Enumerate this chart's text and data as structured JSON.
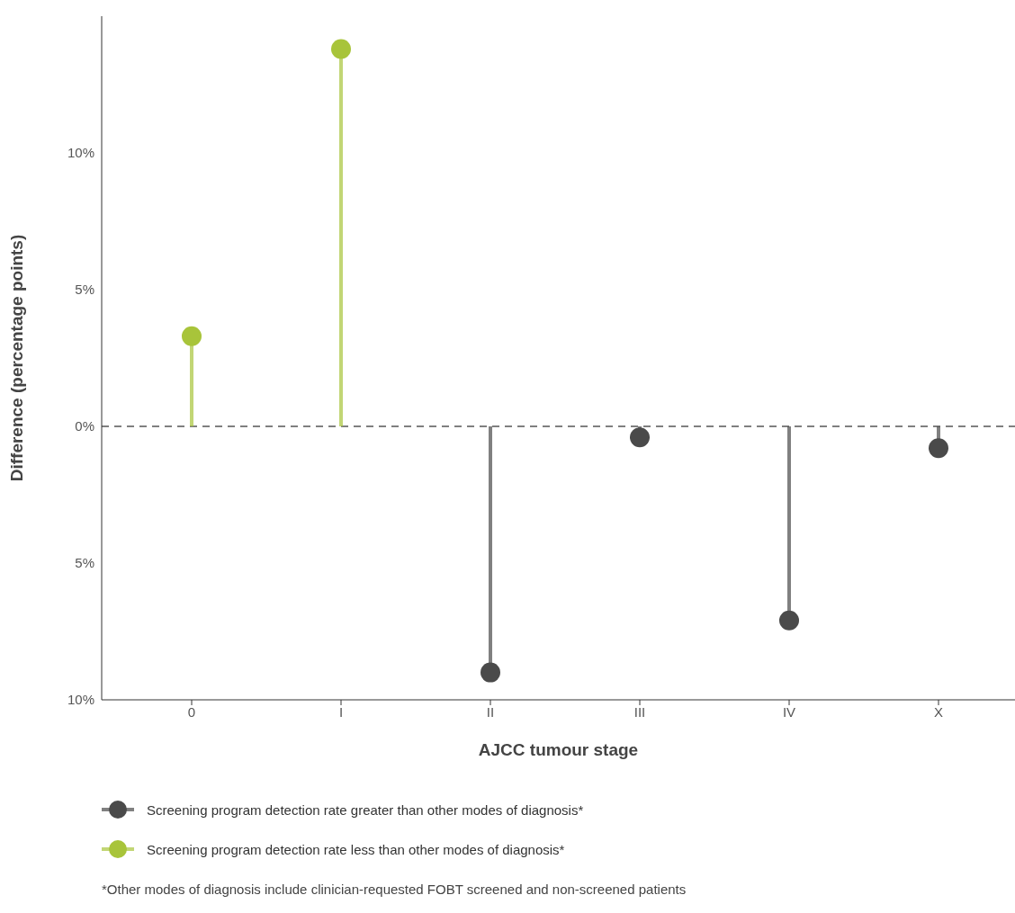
{
  "chart_data": {
    "type": "lollipop",
    "xlabel": "AJCC tumour stage",
    "ylabel": "Difference (percentage points)",
    "categories": [
      "0",
      "I",
      "II",
      "III",
      "IV",
      "X"
    ],
    "series": [
      {
        "name": "Screening program detection rate greater than other modes of diagnosis*",
        "color": "#4a4a4a",
        "values": [
          null,
          null,
          -9.0,
          -0.4,
          -7.1,
          -0.8
        ]
      },
      {
        "name": "Screening program detection rate less than other modes of diagnosis*",
        "color": "#a8c43a",
        "values": [
          3.3,
          13.8,
          null,
          null,
          null,
          null
        ]
      }
    ],
    "ylim": [
      -10,
      15
    ],
    "yticks": [
      {
        "value": -10,
        "label": "10%"
      },
      {
        "value": -5,
        "label": "5%"
      },
      {
        "value": 0,
        "label": "0%"
      },
      {
        "value": 5,
        "label": "5%"
      },
      {
        "value": 10,
        "label": "10%"
      }
    ],
    "ref_lines": [
      {
        "axis": "y",
        "value": 0,
        "line_style": "dashed",
        "color": "#000000"
      }
    ],
    "legend": "bottom",
    "marker": "circle",
    "grid": false,
    "annotations": [
      "*Other modes of diagnosis include clinician-requested FOBT screened and non-screened patients"
    ]
  }
}
